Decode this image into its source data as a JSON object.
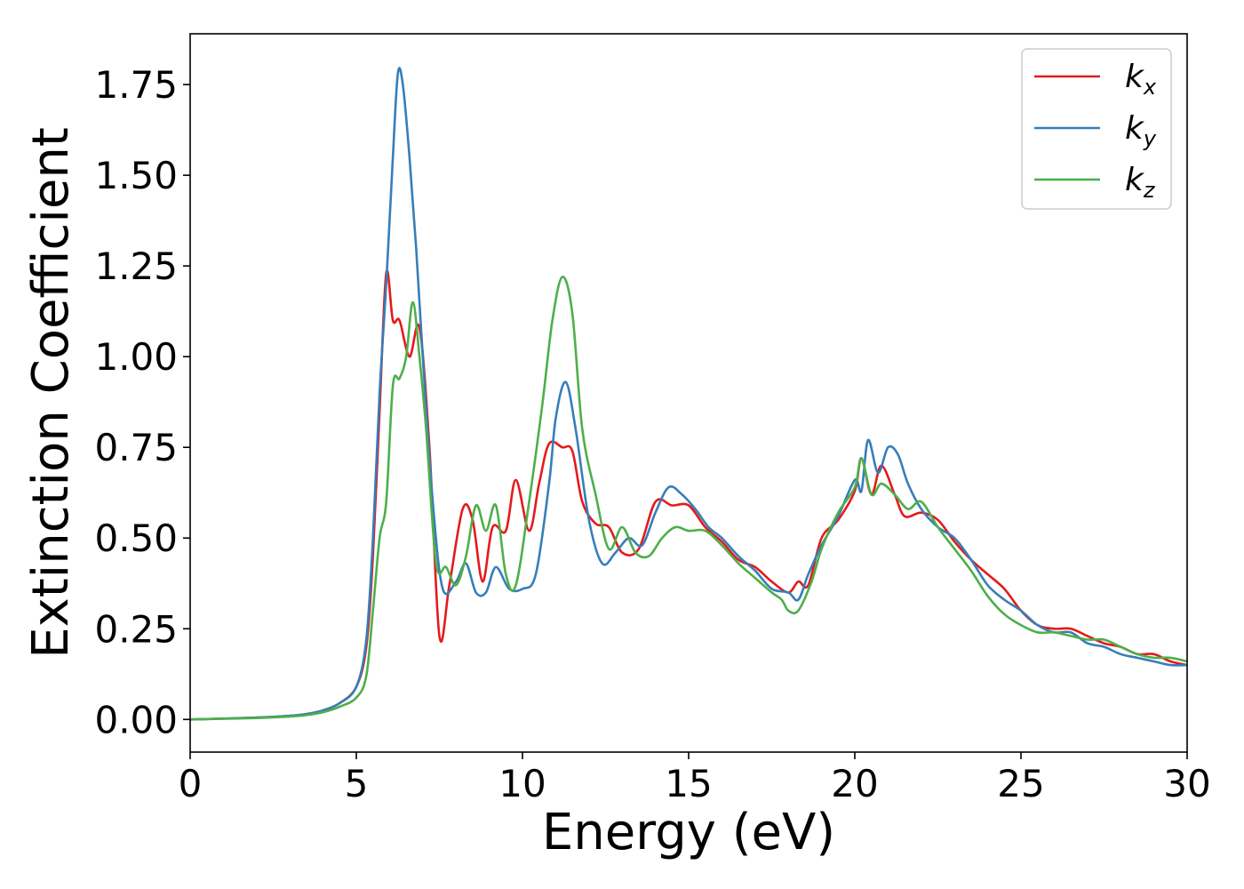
{
  "chart_data": {
    "type": "line",
    "xlabel": "Energy (eV)",
    "ylabel": "Extinction Coefficient",
    "xlim": [
      0,
      30
    ],
    "ylim": [
      -0.09,
      1.89
    ],
    "xticks": [
      "0",
      "5",
      "10",
      "15",
      "20",
      "25",
      "30"
    ],
    "yticks": [
      "0.00",
      "0.25",
      "0.50",
      "0.75",
      "1.00",
      "1.25",
      "1.50",
      "1.75"
    ],
    "grid": false,
    "legend_position": "top-right",
    "series": [
      {
        "name": "k",
        "subscript": "x",
        "color": "#e41a1c",
        "x": [
          0,
          2,
          3,
          3.5,
          4,
          4.5,
          5,
          5.3,
          5.5,
          5.7,
          5.9,
          6.1,
          6.3,
          6.6,
          6.9,
          7.2,
          7.5,
          7.8,
          8.2,
          8.5,
          8.8,
          9.1,
          9.5,
          9.8,
          10.2,
          10.5,
          10.8,
          11.2,
          11.5,
          11.8,
          12.2,
          12.6,
          13.0,
          13.5,
          14.0,
          14.5,
          15.0,
          15.5,
          16.0,
          16.5,
          17.0,
          17.5,
          18.0,
          18.3,
          18.6,
          19.0,
          19.5,
          20.0,
          20.2,
          20.5,
          20.8,
          21.2,
          21.5,
          22.0,
          22.5,
          23.0,
          23.5,
          24.0,
          24.5,
          25.0,
          25.5,
          26.0,
          26.5,
          27.0,
          27.5,
          28.0,
          28.5,
          29.0,
          29.5,
          30.0
        ],
        "y": [
          0,
          0.005,
          0.01,
          0.015,
          0.025,
          0.045,
          0.09,
          0.2,
          0.45,
          0.85,
          1.23,
          1.1,
          1.1,
          1.0,
          1.08,
          0.75,
          0.23,
          0.37,
          0.58,
          0.55,
          0.38,
          0.53,
          0.52,
          0.66,
          0.52,
          0.65,
          0.76,
          0.75,
          0.74,
          0.6,
          0.54,
          0.53,
          0.46,
          0.47,
          0.6,
          0.59,
          0.59,
          0.53,
          0.49,
          0.44,
          0.42,
          0.38,
          0.35,
          0.38,
          0.37,
          0.5,
          0.55,
          0.63,
          0.72,
          0.62,
          0.7,
          0.62,
          0.56,
          0.57,
          0.55,
          0.49,
          0.44,
          0.4,
          0.36,
          0.3,
          0.26,
          0.25,
          0.25,
          0.23,
          0.21,
          0.2,
          0.18,
          0.18,
          0.16,
          0.15
        ]
      },
      {
        "name": "k",
        "subscript": "y",
        "color": "#377eb8",
        "x": [
          0,
          2,
          3,
          3.5,
          4,
          4.5,
          5,
          5.3,
          5.5,
          5.7,
          5.9,
          6.1,
          6.25,
          6.4,
          6.6,
          6.8,
          7.0,
          7.3,
          7.6,
          8.0,
          8.3,
          8.6,
          8.9,
          9.2,
          9.6,
          10.0,
          10.4,
          10.8,
          11.0,
          11.3,
          11.6,
          12.0,
          12.4,
          12.8,
          13.2,
          13.6,
          14.0,
          14.4,
          14.8,
          15.2,
          15.6,
          16.0,
          16.5,
          17.0,
          17.5,
          18.0,
          18.3,
          18.6,
          19.0,
          19.5,
          20.0,
          20.2,
          20.4,
          20.7,
          21.0,
          21.3,
          21.6,
          22.0,
          22.5,
          23.0,
          23.5,
          24.0,
          24.5,
          25.0,
          25.5,
          26.0,
          26.5,
          27.0,
          27.5,
          28.0,
          28.5,
          29.0,
          29.5,
          30.0
        ],
        "y": [
          0,
          0.005,
          0.01,
          0.015,
          0.025,
          0.045,
          0.09,
          0.22,
          0.5,
          0.9,
          1.2,
          1.55,
          1.78,
          1.75,
          1.55,
          1.3,
          1.0,
          0.6,
          0.36,
          0.38,
          0.43,
          0.35,
          0.35,
          0.42,
          0.36,
          0.36,
          0.4,
          0.65,
          0.83,
          0.93,
          0.8,
          0.55,
          0.43,
          0.46,
          0.5,
          0.48,
          0.57,
          0.64,
          0.62,
          0.58,
          0.53,
          0.5,
          0.45,
          0.41,
          0.36,
          0.35,
          0.33,
          0.4,
          0.48,
          0.56,
          0.66,
          0.63,
          0.77,
          0.68,
          0.75,
          0.73,
          0.65,
          0.58,
          0.53,
          0.5,
          0.44,
          0.37,
          0.33,
          0.3,
          0.26,
          0.24,
          0.24,
          0.21,
          0.2,
          0.18,
          0.17,
          0.16,
          0.15,
          0.15
        ]
      },
      {
        "name": "k",
        "subscript": "z",
        "color": "#4daf4a",
        "x": [
          0,
          2,
          3,
          3.5,
          4,
          4.5,
          5,
          5.3,
          5.5,
          5.7,
          5.9,
          6.1,
          6.3,
          6.5,
          6.7,
          6.9,
          7.1,
          7.4,
          7.7,
          8.0,
          8.3,
          8.6,
          8.9,
          9.2,
          9.5,
          9.8,
          10.2,
          10.6,
          10.9,
          11.2,
          11.5,
          11.8,
          12.2,
          12.6,
          13.0,
          13.4,
          13.8,
          14.2,
          14.6,
          15.0,
          15.5,
          16.0,
          16.5,
          17.0,
          17.5,
          17.8,
          18.0,
          18.3,
          18.7,
          19.0,
          19.5,
          20.0,
          20.2,
          20.5,
          20.8,
          21.2,
          21.6,
          22.0,
          22.5,
          23.0,
          23.5,
          24.0,
          24.5,
          25.0,
          25.5,
          26.0,
          26.5,
          27.0,
          27.5,
          28.0,
          28.5,
          29.0,
          29.5,
          30.0
        ],
        "y": [
          0,
          0.004,
          0.008,
          0.012,
          0.02,
          0.035,
          0.06,
          0.12,
          0.3,
          0.5,
          0.6,
          0.92,
          0.94,
          1.0,
          1.15,
          1.0,
          0.8,
          0.43,
          0.42,
          0.37,
          0.45,
          0.59,
          0.52,
          0.59,
          0.4,
          0.37,
          0.6,
          0.87,
          1.1,
          1.22,
          1.12,
          0.8,
          0.62,
          0.47,
          0.53,
          0.46,
          0.45,
          0.5,
          0.53,
          0.52,
          0.52,
          0.48,
          0.43,
          0.39,
          0.35,
          0.33,
          0.3,
          0.3,
          0.38,
          0.47,
          0.57,
          0.64,
          0.72,
          0.62,
          0.65,
          0.62,
          0.58,
          0.6,
          0.53,
          0.47,
          0.41,
          0.34,
          0.29,
          0.26,
          0.24,
          0.24,
          0.23,
          0.22,
          0.22,
          0.2,
          0.18,
          0.17,
          0.17,
          0.16
        ]
      }
    ]
  }
}
